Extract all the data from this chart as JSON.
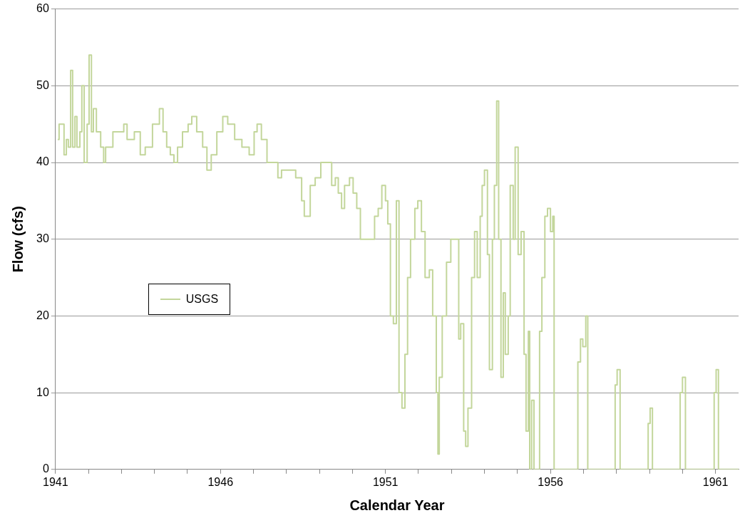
{
  "chart_data": {
    "type": "step",
    "xlabel": "Calendar Year",
    "ylabel": "Flow (cfs)",
    "xlim": [
      1941,
      1961.7
    ],
    "xticks": [
      1941,
      {
        "value": 1942,
        "label": null
      },
      {
        "value": 1943,
        "label": null
      },
      {
        "value": 1944,
        "label": null
      },
      {
        "value": 1945,
        "label": null
      },
      1946,
      {
        "value": 1947,
        "label": null
      },
      {
        "value": 1948,
        "label": null
      },
      {
        "value": 1949,
        "label": null
      },
      {
        "value": 1950,
        "label": null
      },
      1951,
      {
        "value": 1952,
        "label": null
      },
      {
        "value": 1953,
        "label": null
      },
      {
        "value": 1954,
        "label": null
      },
      {
        "value": 1955,
        "label": null
      },
      1956,
      {
        "value": 1957,
        "label": null
      },
      {
        "value": 1958,
        "label": null
      },
      {
        "value": 1959,
        "label": null
      },
      {
        "value": 1960,
        "label": null
      },
      1961
    ],
    "ylim": [
      0,
      60
    ],
    "yticks": [
      0,
      10,
      20,
      30,
      40,
      50,
      60
    ],
    "grid": "y",
    "legend": "left",
    "series": [
      {
        "name": "USGS",
        "color": "#c3d69b",
        "x": [
          1941.07,
          1941.11,
          1941.22,
          1941.26,
          1941.33,
          1941.39,
          1941.46,
          1941.52,
          1941.59,
          1941.65,
          1941.74,
          1941.8,
          1941.87,
          1941.96,
          1942.02,
          1942.09,
          1942.15,
          1942.24,
          1942.37,
          1942.46,
          1942.52,
          1942.63,
          1942.74,
          1942.96,
          1943.07,
          1943.17,
          1943.39,
          1943.57,
          1943.72,
          1943.94,
          1944.15,
          1944.26,
          1944.37,
          1944.48,
          1944.59,
          1944.7,
          1944.85,
          1945.02,
          1945.13,
          1945.28,
          1945.46,
          1945.59,
          1945.72,
          1945.89,
          1946.07,
          1946.22,
          1946.43,
          1946.65,
          1946.87,
          1947.02,
          1947.11,
          1947.24,
          1947.41,
          1947.63,
          1947.74,
          1947.85,
          1948.07,
          1948.28,
          1948.46,
          1948.54,
          1948.72,
          1948.87,
          1949.04,
          1949.22,
          1949.37,
          1949.48,
          1949.57,
          1949.67,
          1949.76,
          1949.91,
          1950.02,
          1950.13,
          1950.24,
          1950.46,
          1950.67,
          1950.78,
          1950.89,
          1951,
          1951.07,
          1951.15,
          1951.24,
          1951.33,
          1951.41,
          1951.5,
          1951.59,
          1951.67,
          1951.76,
          1951.89,
          1951.98,
          1952.09,
          1952.2,
          1952.33,
          1952.43,
          1952.54,
          1952.59,
          1952.63,
          1952.72,
          1952.85,
          1952.98,
          1953.13,
          1953.22,
          1953.28,
          1953.37,
          1953.43,
          1953.5,
          1953.61,
          1953.7,
          1953.78,
          1953.87,
          1953.93,
          1954,
          1954.09,
          1954.15,
          1954.24,
          1954.3,
          1954.37,
          1954.43,
          1954.5,
          1954.57,
          1954.63,
          1954.72,
          1954.78,
          1954.87,
          1954.93,
          1955.02,
          1955.11,
          1955.2,
          1955.26,
          1955.33,
          1955.37,
          1955.43,
          1955.5,
          1955.61,
          1955.67,
          1955.74,
          1955.83,
          1955.91,
          1956,
          1956.07,
          1956.11,
          1956.76,
          1956.83,
          1956.91,
          1956.98,
          1957.07,
          1957.13,
          1957.85,
          1957.96,
          1958.02,
          1958.11,
          1958.89,
          1958.96,
          1959.02,
          1959.09,
          1959.8,
          1959.93,
          1960,
          1960.09,
          1960.85,
          1960.96,
          1961.02,
          1961.09,
          1961.7
        ],
        "values": [
          43,
          45,
          45,
          41,
          43,
          42,
          52,
          42,
          46,
          42,
          44,
          50,
          40,
          45,
          54,
          44,
          47,
          44,
          42,
          40,
          42,
          42,
          44,
          44,
          45,
          43,
          44,
          41,
          42,
          45,
          47,
          44,
          42,
          41,
          40,
          42,
          44,
          45,
          46,
          44,
          42,
          39,
          41,
          44,
          46,
          45,
          43,
          42,
          41,
          44,
          45,
          43,
          40,
          40,
          38,
          39,
          39,
          38,
          35,
          33,
          37,
          38,
          40,
          40,
          37,
          38,
          36,
          34,
          37,
          38,
          36,
          34,
          30,
          30,
          33,
          34,
          37,
          35,
          32,
          20,
          19,
          35,
          10,
          8,
          15,
          25,
          30,
          34,
          35,
          31,
          25,
          26,
          20,
          10,
          2,
          12,
          20,
          27,
          30,
          30,
          17,
          19,
          5,
          3,
          8,
          25,
          31,
          25,
          33,
          37,
          39,
          28,
          13,
          30,
          37,
          48,
          30,
          12,
          23,
          15,
          20,
          37,
          30,
          42,
          28,
          31,
          15,
          5,
          18,
          0,
          9,
          0,
          0,
          18,
          25,
          33,
          34,
          31,
          33,
          0,
          0,
          14,
          17,
          16,
          20,
          0,
          0,
          11,
          13,
          0,
          0,
          6,
          8,
          0,
          0,
          10,
          12,
          0,
          0,
          10,
          13,
          0,
          0
        ]
      }
    ]
  }
}
